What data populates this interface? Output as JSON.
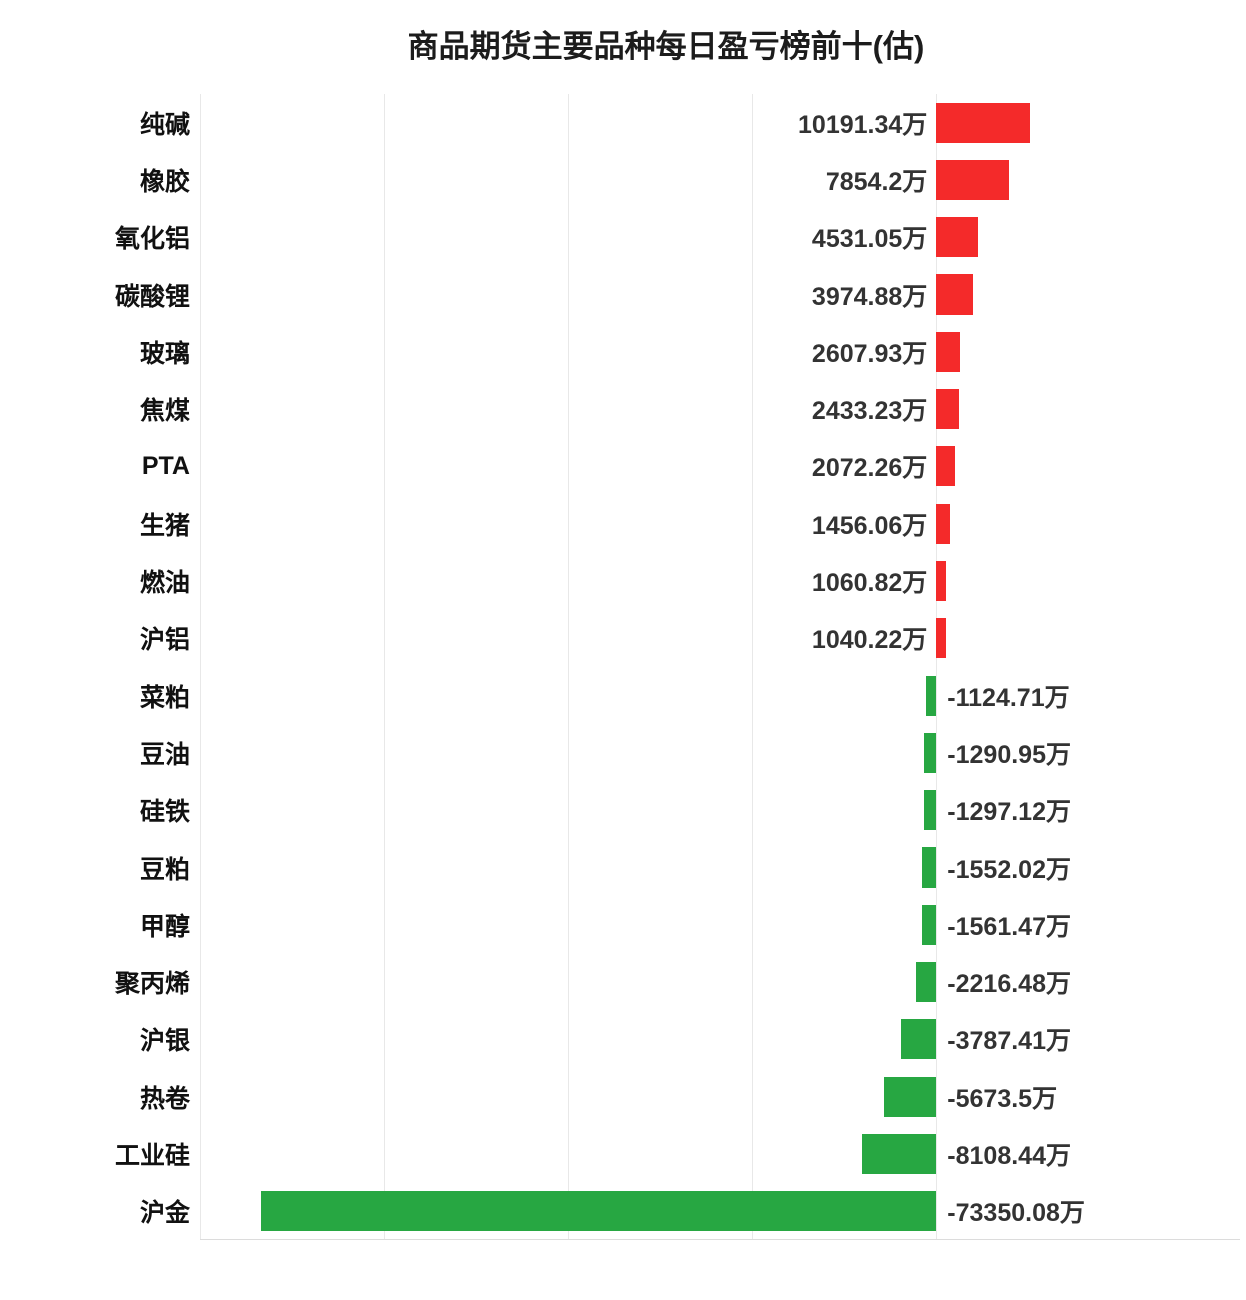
{
  "chart_data": {
    "type": "bar",
    "orientation": "horizontal",
    "title": "商品期货主要品种每日盈亏榜前十(估)",
    "unit": "万",
    "xlim": [
      -80000,
      33000
    ],
    "gridlines": [
      -80000,
      -60000,
      -40000,
      -20000,
      0
    ],
    "legend": "none",
    "colors": {
      "positive": "#f42a2a",
      "negative": "#27a742",
      "gridline": "#e8e8e8",
      "axis_line": "#dcdcdc",
      "category_label": "#111111",
      "value_label": "#333333"
    },
    "items": [
      {
        "category": "纯碱",
        "value": 10191.34,
        "label": "10191.34万"
      },
      {
        "category": "橡胶",
        "value": 7854.2,
        "label": "7854.2万"
      },
      {
        "category": "氧化铝",
        "value": 4531.05,
        "label": "4531.05万"
      },
      {
        "category": "碳酸锂",
        "value": 3974.88,
        "label": "3974.88万"
      },
      {
        "category": "玻璃",
        "value": 2607.93,
        "label": "2607.93万"
      },
      {
        "category": "焦煤",
        "value": 2433.23,
        "label": "2433.23万"
      },
      {
        "category": "PTA",
        "value": 2072.26,
        "label": "2072.26万"
      },
      {
        "category": "生猪",
        "value": 1456.06,
        "label": "1456.06万"
      },
      {
        "category": "燃油",
        "value": 1060.82,
        "label": "1060.82万"
      },
      {
        "category": "沪铝",
        "value": 1040.22,
        "label": "1040.22万"
      },
      {
        "category": "菜粕",
        "value": -1124.71,
        "label": "-1124.71万"
      },
      {
        "category": "豆油",
        "value": -1290.95,
        "label": "-1290.95万"
      },
      {
        "category": "硅铁",
        "value": -1297.12,
        "label": "-1297.12万"
      },
      {
        "category": "豆粕",
        "value": -1552.02,
        "label": "-1552.02万"
      },
      {
        "category": "甲醇",
        "value": -1561.47,
        "label": "-1561.47万"
      },
      {
        "category": "聚丙烯",
        "value": -2216.48,
        "label": "-2216.48万"
      },
      {
        "category": "沪银",
        "value": -3787.41,
        "label": "-3787.41万"
      },
      {
        "category": "热卷",
        "value": -5673.5,
        "label": "-5673.5万"
      },
      {
        "category": "工业硅",
        "value": -8108.44,
        "label": "-8108.44万"
      },
      {
        "category": "沪金",
        "value": -73350.08,
        "label": "-73350.08万"
      }
    ]
  }
}
